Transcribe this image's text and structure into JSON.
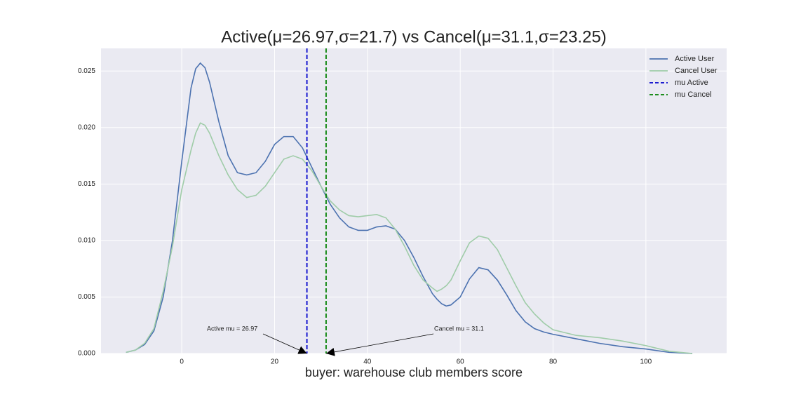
{
  "chart_data": {
    "type": "line",
    "title": "Active(μ=26.97,σ=21.7) vs Cancel(μ=31.1,σ=23.25)",
    "xlabel": "buyer: warehouse club members score",
    "x": [
      -12,
      -10,
      -8,
      -6,
      -4,
      -2,
      0,
      2,
      3,
      4,
      5,
      6,
      8,
      10,
      12,
      14,
      16,
      18,
      20,
      22,
      24,
      26,
      28,
      30,
      32,
      34,
      36,
      38,
      40,
      42,
      44,
      46,
      48,
      50,
      52,
      54,
      55,
      56,
      57,
      58,
      60,
      62,
      64,
      66,
      68,
      70,
      72,
      74,
      76,
      78,
      80,
      85,
      90,
      95,
      100,
      105,
      110
    ],
    "series": [
      {
        "name": "Active User",
        "color": "#4c72b0",
        "values": [
          0.0001,
          0.0003,
          0.0008,
          0.002,
          0.005,
          0.01,
          0.017,
          0.0235,
          0.0252,
          0.0257,
          0.0253,
          0.024,
          0.0205,
          0.0175,
          0.016,
          0.0158,
          0.016,
          0.017,
          0.0185,
          0.0192,
          0.0192,
          0.0182,
          0.0165,
          0.0148,
          0.0132,
          0.012,
          0.0112,
          0.0109,
          0.0109,
          0.0112,
          0.0113,
          0.011,
          0.01,
          0.0085,
          0.0068,
          0.0053,
          0.0048,
          0.0044,
          0.0042,
          0.0043,
          0.005,
          0.0066,
          0.0076,
          0.0074,
          0.0065,
          0.0052,
          0.0038,
          0.0028,
          0.0022,
          0.0019,
          0.0017,
          0.0013,
          0.0009,
          0.0006,
          0.0004,
          0.0001,
          0.0
        ]
      },
      {
        "name": "Cancel User",
        "color": "#9fcca8",
        "values": [
          0.0001,
          0.0003,
          0.0009,
          0.0022,
          0.0055,
          0.0095,
          0.0145,
          0.018,
          0.0195,
          0.0204,
          0.0202,
          0.0195,
          0.0175,
          0.0158,
          0.0145,
          0.0138,
          0.014,
          0.0148,
          0.016,
          0.0172,
          0.0175,
          0.0172,
          0.0162,
          0.0148,
          0.0135,
          0.0127,
          0.0122,
          0.0121,
          0.0122,
          0.0123,
          0.012,
          0.011,
          0.0095,
          0.0078,
          0.0065,
          0.0058,
          0.0055,
          0.0057,
          0.006,
          0.0065,
          0.0082,
          0.0098,
          0.0104,
          0.0102,
          0.0092,
          0.0076,
          0.006,
          0.0045,
          0.0035,
          0.0027,
          0.0021,
          0.0016,
          0.0014,
          0.0011,
          0.0007,
          0.0002,
          0.0
        ]
      }
    ],
    "vlines": [
      {
        "name": "mu Active",
        "color": "#0000cc",
        "x": 26.97,
        "annotation": "Active mu = 26.97"
      },
      {
        "name": "mu Cancel",
        "color": "#008000",
        "x": 31.1,
        "annotation": "Cancel mu = 31.1"
      }
    ],
    "xlim": [
      -17.4,
      117.4
    ],
    "ylim": [
      0,
      0.027
    ],
    "xticks": [
      0,
      20,
      40,
      60,
      80,
      100
    ],
    "yticks": [
      {
        "value": 0,
        "label": "0.000"
      },
      {
        "value": 0.005,
        "label": "0.005"
      },
      {
        "value": 0.01,
        "label": "0.010"
      },
      {
        "value": 0.015,
        "label": "0.015"
      },
      {
        "value": 0.02,
        "label": "0.020"
      },
      {
        "value": 0.025,
        "label": "0.025"
      }
    ],
    "grid": true,
    "legend": "upper right"
  }
}
